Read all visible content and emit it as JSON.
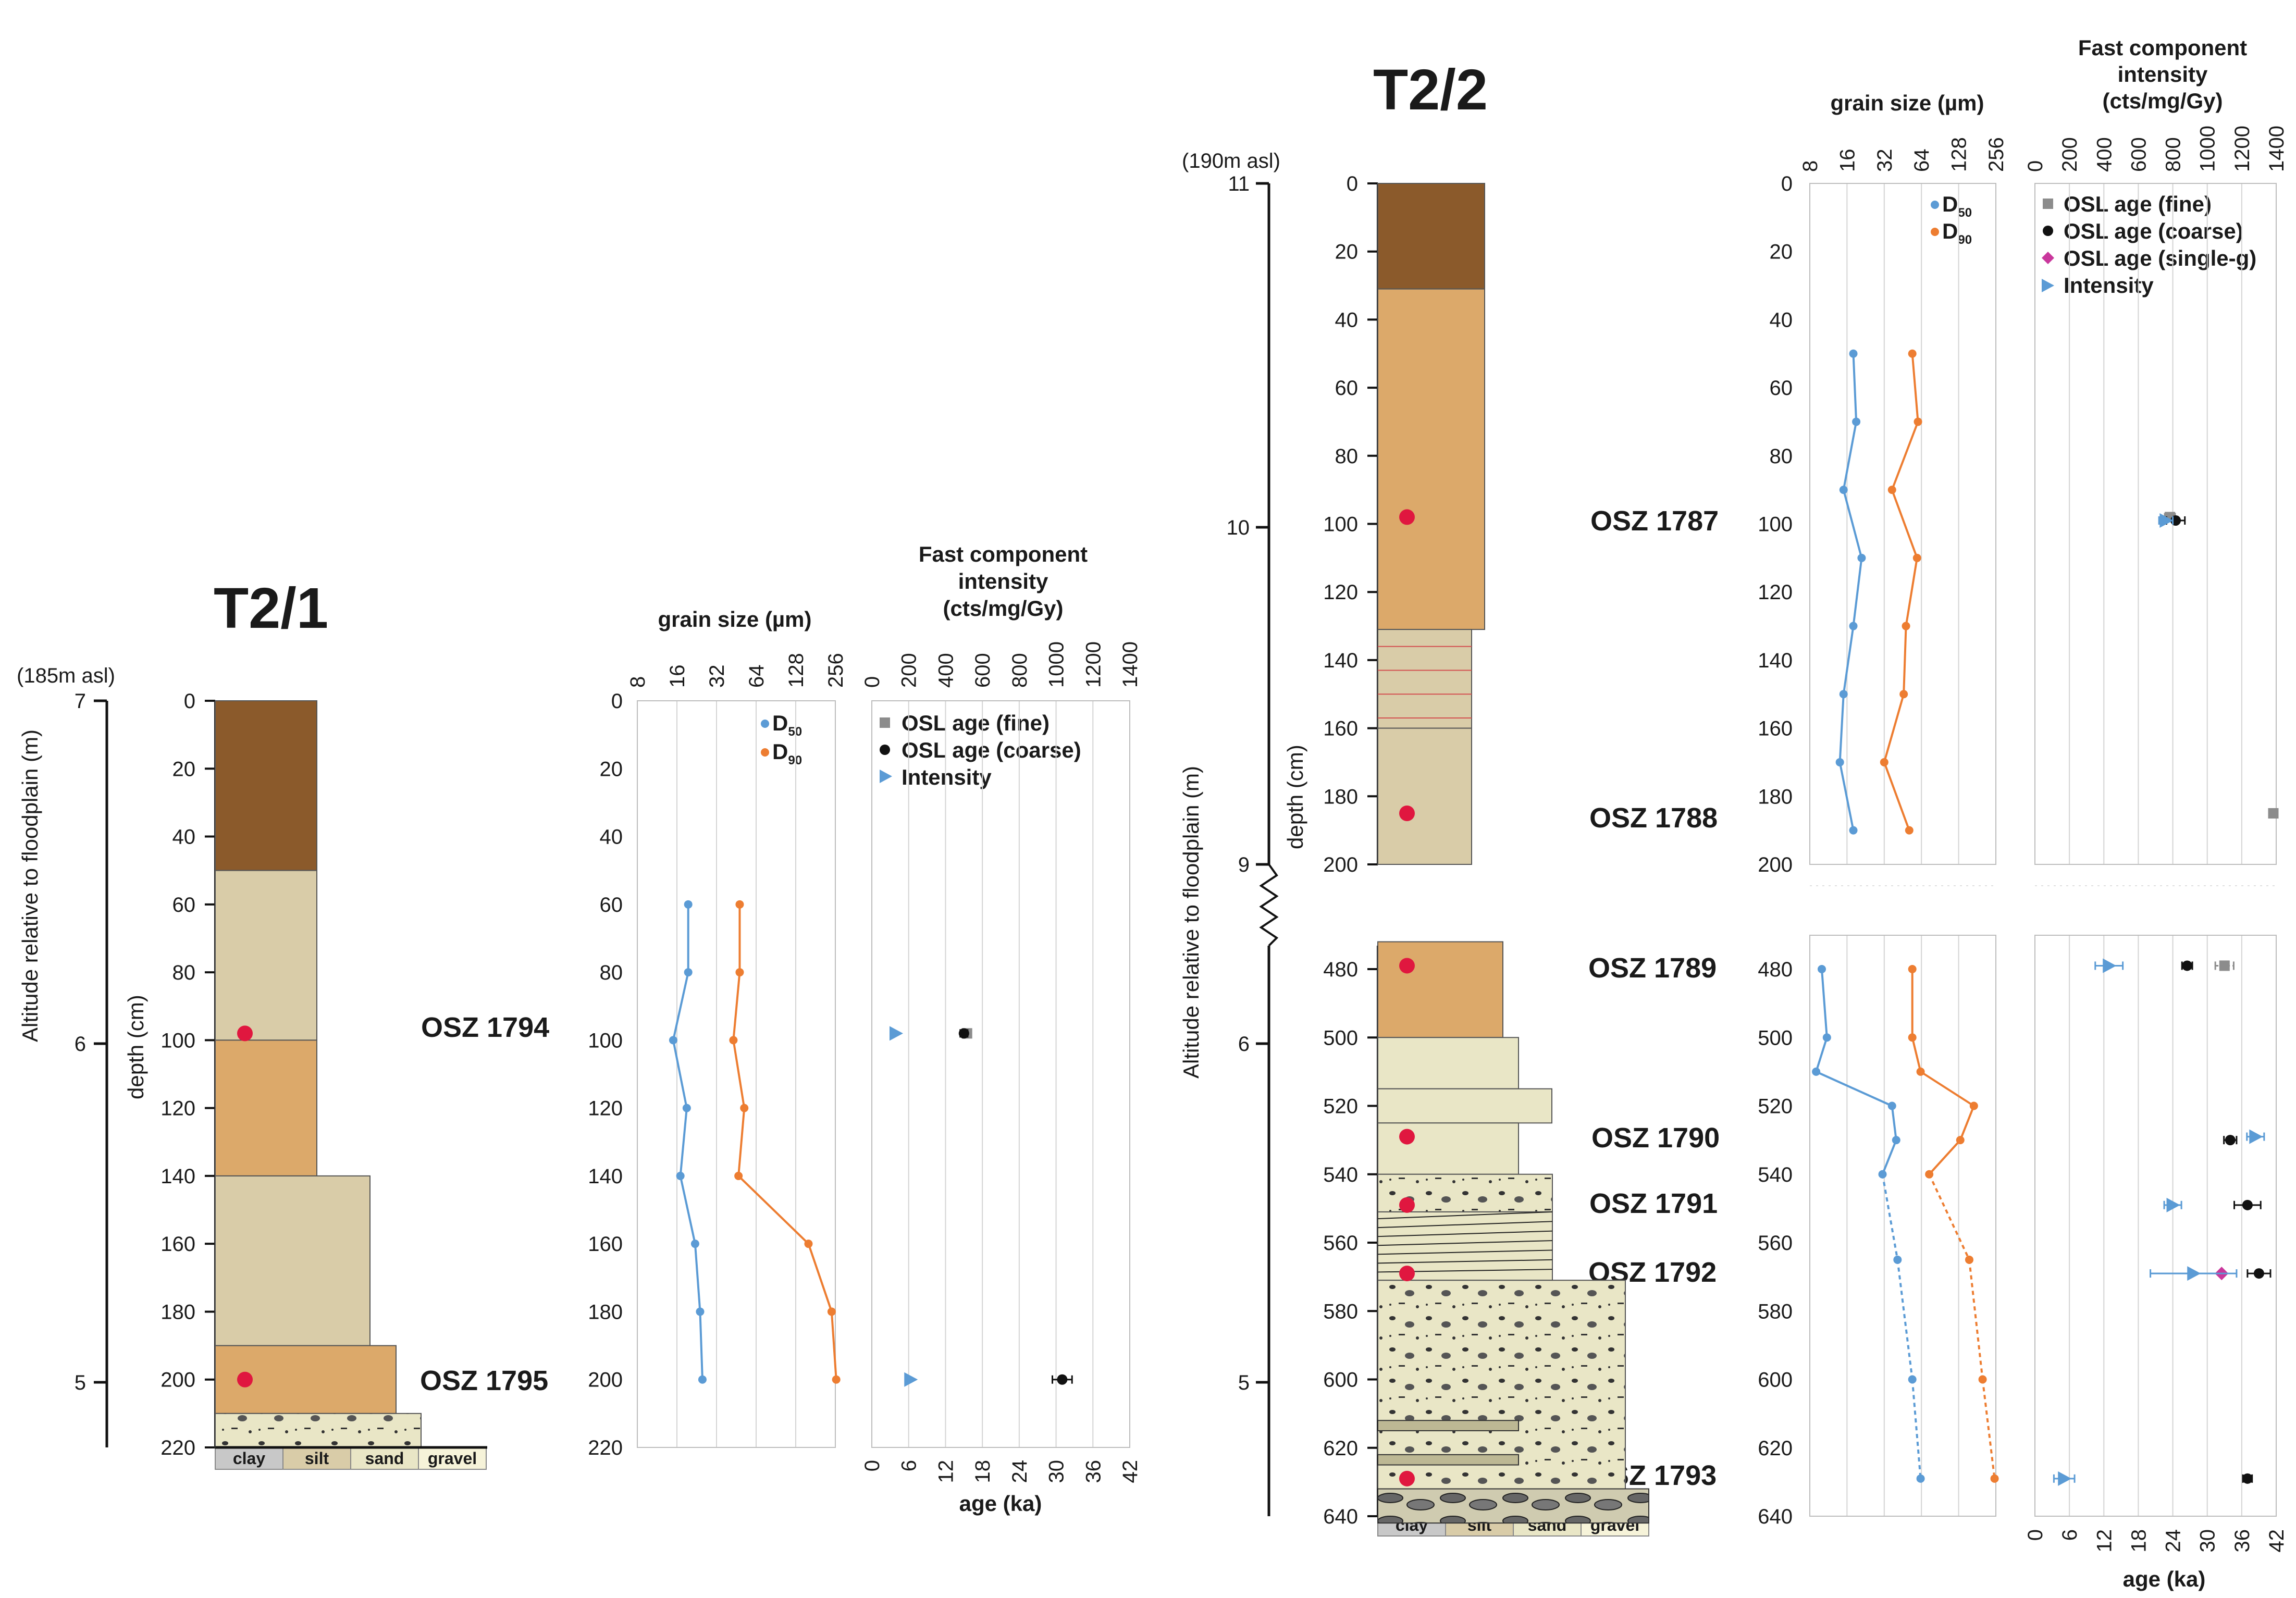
{
  "chart_data": {
    "type": "scatter",
    "figure_description": "Sediment profiles T2/1 and T2/2 with grain size and OSL age plots",
    "colors": {
      "d50": "#5b9bd5",
      "d90": "#ed7d31",
      "osl_fine": "#8c8c8c",
      "osl_coarse": "#111111",
      "osl_single": "#c9379c",
      "intensity": "#5b9bd5",
      "sample_dot": "#e0173f",
      "grid": "#d4d4d4",
      "unit_dark": "#8b5a2b",
      "unit_orange": "#dca96a",
      "unit_beige": "#d9cca8",
      "unit_pale": "#e9e6c6"
    },
    "shared": {
      "grain_header": "grain size (µm)",
      "grain_ticks": [
        "8",
        "16",
        "32",
        "64",
        "128",
        "256"
      ],
      "fast_header": [
        "Fast component",
        "intensity",
        "(cts/mg/Gy)"
      ],
      "intensity_ticks": [
        "0",
        "200",
        "400",
        "600",
        "800",
        "1000",
        "1200",
        "1400"
      ],
      "age_ticks": [
        "0",
        "6",
        "12",
        "18",
        "24",
        "30",
        "36",
        "42"
      ],
      "age_label": "age (ka)",
      "depth_label": "depth (cm)",
      "altitude_label": "Altitude relative to floodplain (m)",
      "legend_d50": "D",
      "legend_d50_sub": "50",
      "legend_d90": "D",
      "legend_d90_sub": "90",
      "texture_labels": [
        "clay",
        "silt",
        "sand",
        "gravel"
      ]
    },
    "profiles": [
      {
        "title": "T2/1",
        "asl": "(185m asl)",
        "altitude_ticks": [
          "7",
          "6",
          "5"
        ],
        "depth_ticks": [
          "0",
          "20",
          "40",
          "60",
          "80",
          "100",
          "120",
          "140",
          "160",
          "180",
          "200",
          "220"
        ],
        "samples": [
          {
            "label": "OSZ 1794",
            "depth": 98
          },
          {
            "label": "OSZ 1795",
            "depth": 200
          }
        ],
        "d50": [
          [
            60,
            19.5
          ],
          [
            80,
            19.5
          ],
          [
            100,
            15
          ],
          [
            120,
            19
          ],
          [
            140,
            17
          ],
          [
            160,
            22
          ],
          [
            180,
            24
          ],
          [
            200,
            25
          ]
        ],
        "d90": [
          [
            60,
            48
          ],
          [
            80,
            48
          ],
          [
            100,
            43
          ],
          [
            120,
            52
          ],
          [
            140,
            47
          ],
          [
            160,
            160
          ],
          [
            180,
            240
          ],
          [
            200,
            260
          ]
        ],
        "legend": [
          "OSL age (fine)",
          "OSL age (coarse)",
          "Intensity"
        ],
        "osl_fine": [
          {
            "depth": 98,
            "age": 15.5,
            "err": 0.6
          }
        ],
        "osl_coarse": [
          {
            "depth": 98,
            "age": 15,
            "err": 0.6
          },
          {
            "depth": 200,
            "age": 31,
            "err": 1.6
          }
        ],
        "intensity": [
          {
            "depth": 98,
            "value": 130,
            "err": 0
          },
          {
            "depth": 200,
            "value": 210,
            "err": 0
          }
        ]
      },
      {
        "title": "T2/2",
        "asl": "(190m asl)",
        "altitude_ticks": [
          "11",
          "10",
          "9",
          "6",
          "5"
        ],
        "depth_ticks_upper": [
          "0",
          "20",
          "40",
          "60",
          "80",
          "100",
          "120",
          "140",
          "160",
          "180",
          "200"
        ],
        "depth_ticks_lower": [
          "480",
          "500",
          "520",
          "540",
          "560",
          "580",
          "600",
          "620",
          "640"
        ],
        "samples": [
          {
            "label": "OSZ 1787",
            "depth": 98
          },
          {
            "label": "OSZ 1788",
            "depth": 185
          },
          {
            "label": "OSZ 1789",
            "depth": 479
          },
          {
            "label": "OSZ 1790",
            "depth": 529
          },
          {
            "label": "OSZ 1791",
            "depth": 549
          },
          {
            "label": "OSZ 1792",
            "depth": 569
          },
          {
            "label": "OSZ 1793",
            "depth": 629
          }
        ],
        "d50": [
          [
            50,
            18
          ],
          [
            70,
            19
          ],
          [
            90,
            15
          ],
          [
            110,
            21
          ],
          [
            130,
            18
          ],
          [
            150,
            15
          ],
          [
            170,
            14
          ],
          [
            190,
            18
          ],
          [
            480,
            10
          ],
          [
            500,
            11
          ],
          [
            510,
            9
          ],
          [
            520,
            37
          ],
          [
            530,
            40
          ],
          [
            540,
            31
          ],
          [
            565,
            41
          ],
          [
            600,
            54
          ],
          [
            629,
            63
          ]
        ],
        "d90": [
          [
            50,
            54
          ],
          [
            70,
            60
          ],
          [
            90,
            37
          ],
          [
            110,
            59
          ],
          [
            130,
            48
          ],
          [
            150,
            46
          ],
          [
            170,
            32
          ],
          [
            190,
            51
          ],
          [
            480,
            54
          ],
          [
            500,
            54
          ],
          [
            510,
            63
          ],
          [
            520,
            170
          ],
          [
            530,
            132
          ],
          [
            540,
            74
          ],
          [
            565,
            156
          ],
          [
            600,
            200
          ],
          [
            629,
            250
          ]
        ],
        "d50_dashed_from": 540,
        "legend": [
          "OSL age (fine)",
          "OSL age (coarse)",
          "OSL age (single-g)",
          "Intensity"
        ],
        "osl_fine": [
          {
            "depth": 98,
            "age": 23.5,
            "err": 0.9
          },
          {
            "depth": 185,
            "age": 41.5,
            "err": 0.6
          },
          {
            "depth": 479,
            "age": 33,
            "err": 1.6
          }
        ],
        "osl_coarse": [
          {
            "depth": 99,
            "age": 24.5,
            "err": 1.6
          },
          {
            "depth": 479,
            "age": 26.5,
            "err": 0.9
          },
          {
            "depth": 530,
            "age": 34,
            "err": 1.1
          },
          {
            "depth": 549,
            "age": 37,
            "err": 2.3
          },
          {
            "depth": 569,
            "age": 39,
            "err": 2
          },
          {
            "depth": 629,
            "age": 37,
            "err": 0.8
          }
        ],
        "osl_single": [
          {
            "depth": 569,
            "age": 32.5,
            "err": 0
          }
        ],
        "intensity": [
          {
            "depth": 99,
            "value": 760,
            "err": 40
          },
          {
            "depth": 479,
            "value": 430,
            "err": 80
          },
          {
            "depth": 529,
            "value": 1280,
            "err": 50
          },
          {
            "depth": 549,
            "value": 800,
            "err": 50
          },
          {
            "depth": 569,
            "value": 920,
            "err": 250
          },
          {
            "depth": 629,
            "value": 170,
            "err": 60
          }
        ]
      }
    ]
  }
}
